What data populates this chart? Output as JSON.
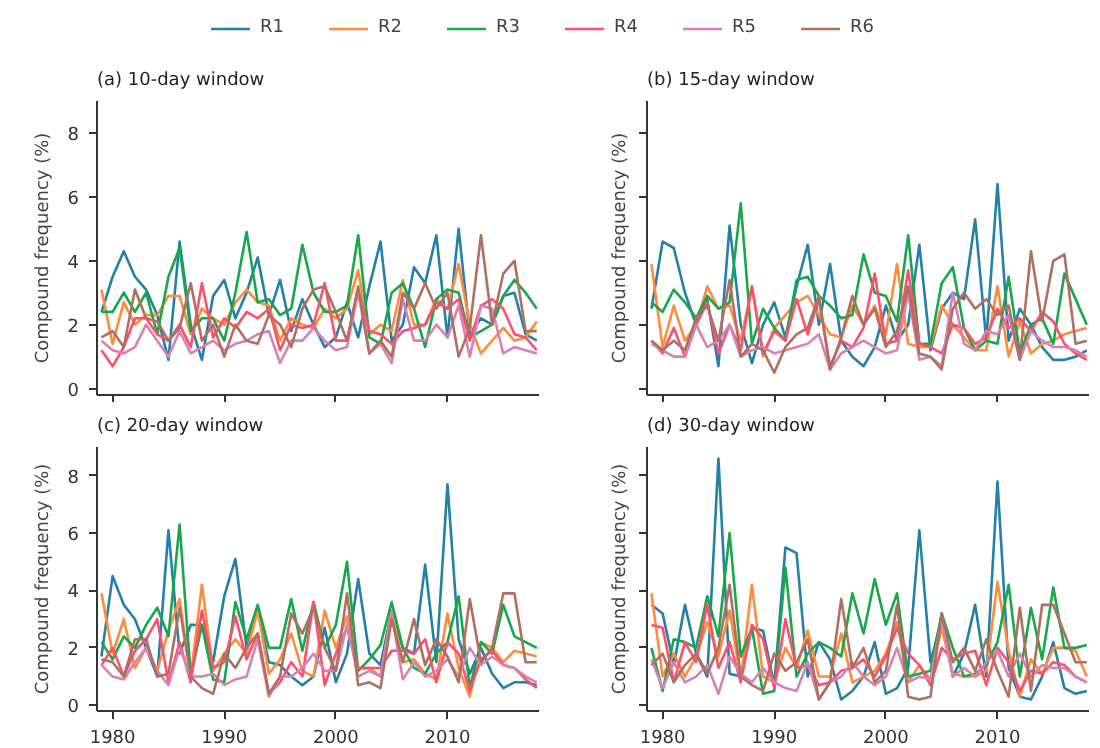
{
  "chart_data": [
    {
      "type": "line",
      "title": "(a) 10-day window",
      "ylabel": "Compound frequency (%)",
      "x": [
        1979,
        1980,
        1981,
        1982,
        1983,
        1984,
        1985,
        1986,
        1987,
        1988,
        1989,
        1990,
        1991,
        1992,
        1993,
        1994,
        1995,
        1996,
        1997,
        1998,
        1999,
        2000,
        2001,
        2002,
        2003,
        2004,
        2005,
        2006,
        2007,
        2008,
        2009,
        2010,
        2011,
        2012,
        2013,
        2014,
        2015,
        2016,
        2017,
        2018
      ],
      "xlim": [
        1978.6,
        2018.2
      ],
      "ylim": [
        -0.2,
        9
      ],
      "xticks": [
        1980,
        1990,
        2000,
        2010
      ],
      "yticks": [
        0,
        2,
        4,
        6,
        8
      ],
      "tick_labels": "y",
      "grid": false,
      "legend": "top",
      "series": [
        {
          "name": "R1",
          "color": "#2580a8",
          "values": [
            2.4,
            3.5,
            4.3,
            3.5,
            3.1,
            2.3,
            0.9,
            4.6,
            2.0,
            0.9,
            2.9,
            3.4,
            2.2,
            3.0,
            4.1,
            2.3,
            3.4,
            1.8,
            2.8,
            2.0,
            1.3,
            1.6,
            2.7,
            1.6,
            3.2,
            4.6,
            1.5,
            2.0,
            3.8,
            3.3,
            4.8,
            1.6,
            5.0,
            1.7,
            2.2,
            2.0,
            2.9,
            3.0,
            1.7,
            1.5
          ]
        },
        {
          "name": "R2",
          "color": "#ff8c3c",
          "values": [
            3.1,
            1.4,
            2.7,
            2.0,
            2.3,
            2.3,
            2.9,
            2.9,
            1.7,
            2.5,
            2.2,
            2.0,
            2.7,
            3.1,
            2.7,
            2.6,
            1.5,
            2.2,
            2.0,
            1.9,
            2.5,
            2.2,
            2.5,
            3.7,
            1.7,
            2.0,
            1.8,
            3.4,
            2.0,
            2.0,
            2.8,
            2.5,
            3.9,
            2.0,
            1.1,
            1.5,
            1.9,
            1.5,
            1.6,
            2.1
          ]
        },
        {
          "name": "R3",
          "color": "#1aa64a",
          "values": [
            2.4,
            2.4,
            3.0,
            2.4,
            3.0,
            1.7,
            3.5,
            4.4,
            1.8,
            2.2,
            2.2,
            1.5,
            3.0,
            4.9,
            2.7,
            2.8,
            2.3,
            2.5,
            4.5,
            3.0,
            2.4,
            2.4,
            2.6,
            4.8,
            1.6,
            1.4,
            3.0,
            3.3,
            2.5,
            1.3,
            2.8,
            3.1,
            3.0,
            1.6,
            1.8,
            2.0,
            2.9,
            3.4,
            3.0,
            2.5
          ]
        },
        {
          "name": "R4",
          "color": "#ff4f6e",
          "values": [
            1.2,
            0.7,
            1.3,
            2.2,
            2.2,
            1.7,
            1.5,
            2.0,
            1.3,
            3.3,
            1.6,
            2.2,
            1.9,
            2.4,
            2.2,
            2.5,
            1.2,
            2.0,
            1.9,
            2.0,
            3.3,
            1.5,
            1.5,
            3.1,
            1.8,
            1.7,
            1.4,
            1.8,
            1.9,
            2.0,
            2.7,
            2.5,
            2.8,
            1.5,
            2.6,
            2.8,
            2.5,
            1.7,
            1.6,
            1.2
          ]
        },
        {
          "name": "R5",
          "color": "#d882b4",
          "values": [
            1.5,
            1.2,
            1.1,
            1.3,
            2.0,
            1.5,
            1.0,
            1.8,
            1.1,
            1.3,
            1.5,
            1.2,
            1.4,
            1.5,
            1.7,
            1.8,
            0.8,
            1.5,
            1.5,
            1.9,
            1.5,
            1.2,
            1.3,
            3.0,
            1.1,
            1.4,
            0.8,
            2.8,
            1.5,
            1.5,
            2.0,
            1.6,
            2.6,
            1.0,
            2.6,
            2.5,
            1.1,
            1.3,
            1.2,
            1.1
          ]
        },
        {
          "name": "R6",
          "color": "#b0705f",
          "values": [
            1.6,
            1.8,
            1.3,
            3.1,
            2.2,
            2.1,
            1.5,
            1.9,
            3.3,
            1.5,
            2.0,
            1.0,
            2.0,
            1.5,
            1.4,
            2.3,
            2.0,
            1.3,
            2.5,
            3.1,
            3.2,
            2.4,
            1.5,
            3.2,
            1.1,
            1.5,
            1.0,
            3.0,
            2.5,
            3.3,
            2.5,
            3.0,
            1.0,
            1.9,
            4.8,
            2.0,
            3.6,
            4.0,
            1.8,
            1.8
          ]
        }
      ]
    },
    {
      "type": "line",
      "title": "(b) 15-day window",
      "ylabel": "Compound frequency (%)",
      "x": [
        1979,
        1980,
        1981,
        1982,
        1983,
        1984,
        1985,
        1986,
        1987,
        1988,
        1989,
        1990,
        1991,
        1992,
        1993,
        1994,
        1995,
        1996,
        1997,
        1998,
        1999,
        2000,
        2001,
        2002,
        2003,
        2004,
        2005,
        2006,
        2007,
        2008,
        2009,
        2010,
        2011,
        2012,
        2013,
        2014,
        2015,
        2016,
        2017,
        2018
      ],
      "xlim": [
        1978.6,
        2018.2
      ],
      "ylim": [
        -0.2,
        9
      ],
      "xticks": [
        1980,
        1990,
        2000,
        2010
      ],
      "yticks": [
        0,
        2,
        4,
        6,
        8
      ],
      "tick_labels": false,
      "grid": false,
      "series": [
        {
          "color": "#2580a8",
          "values": [
            2.5,
            4.6,
            4.4,
            3.0,
            2.0,
            2.8,
            0.7,
            5.1,
            2.0,
            0.8,
            2.0,
            2.7,
            1.6,
            3.2,
            4.5,
            2.0,
            3.9,
            1.5,
            1.0,
            0.7,
            1.3,
            2.6,
            1.5,
            2.0,
            4.5,
            1.2,
            2.5,
            3.0,
            2.8,
            5.3,
            1.5,
            6.4,
            1.5,
            2.5,
            2.0,
            1.3,
            0.9,
            0.9,
            1.0,
            1.2
          ]
        },
        {
          "color": "#ff8c3c",
          "values": [
            3.9,
            1.3,
            2.6,
            1.5,
            2.0,
            3.2,
            2.5,
            2.6,
            1.5,
            3.2,
            1.0,
            1.9,
            2.3,
            2.7,
            2.9,
            2.3,
            1.7,
            1.6,
            2.6,
            2.0,
            2.6,
            1.7,
            3.9,
            1.4,
            1.3,
            1.3,
            2.6,
            2.0,
            1.6,
            1.2,
            1.2,
            3.2,
            1.0,
            2.1,
            1.1,
            1.4,
            1.5,
            1.7,
            1.8,
            1.9
          ]
        },
        {
          "color": "#1aa64a",
          "values": [
            2.7,
            2.4,
            3.1,
            2.7,
            2.2,
            2.9,
            2.5,
            2.7,
            5.8,
            1.4,
            2.5,
            1.9,
            1.5,
            3.4,
            3.5,
            2.9,
            2.6,
            2.2,
            2.3,
            4.2,
            3.0,
            2.9,
            2.1,
            4.8,
            1.4,
            1.4,
            3.3,
            3.8,
            1.9,
            1.2,
            1.5,
            1.4,
            3.5,
            1.1,
            2.0,
            2.2,
            1.4,
            3.6,
            2.8,
            2.0
          ]
        },
        {
          "color": "#ff4f6e",
          "values": [
            1.5,
            1.1,
            1.9,
            1.0,
            2.0,
            2.7,
            1.1,
            2.0,
            1.2,
            3.2,
            1.1,
            1.8,
            1.5,
            2.8,
            1.7,
            2.8,
            0.7,
            1.5,
            1.3,
            1.9,
            3.6,
            1.4,
            1.5,
            3.7,
            1.4,
            1.3,
            1.1,
            2.0,
            1.9,
            1.4,
            1.6,
            2.5,
            1.9,
            2.2,
            1.8,
            2.4,
            2.1,
            1.4,
            1.1,
            0.9
          ]
        },
        {
          "color": "#d882b4",
          "values": [
            1.4,
            1.2,
            1.0,
            1.0,
            2.0,
            1.3,
            1.5,
            2.0,
            1.0,
            1.2,
            1.3,
            1.1,
            1.2,
            1.3,
            1.4,
            1.7,
            0.6,
            1.1,
            1.3,
            1.5,
            1.3,
            1.1,
            1.2,
            3.0,
            0.9,
            1.0,
            0.7,
            3.0,
            1.4,
            1.2,
            1.8,
            1.7,
            2.3,
            0.9,
            1.8,
            1.5,
            1.3,
            1.3,
            1.2,
            1.0
          ]
        },
        {
          "color": "#b0705f",
          "values": [
            1.5,
            1.2,
            1.5,
            1.2,
            2.2,
            2.6,
            1.5,
            3.4,
            1.0,
            1.4,
            1.2,
            0.5,
            1.3,
            1.7,
            1.9,
            2.9,
            0.6,
            1.6,
            2.9,
            2.0,
            2.5,
            1.3,
            1.8,
            3.2,
            1.1,
            1.0,
            0.6,
            2.5,
            3.0,
            2.5,
            2.8,
            2.3,
            2.6,
            0.9,
            4.3,
            2.1,
            4.0,
            4.2,
            1.4,
            1.5
          ]
        }
      ]
    },
    {
      "type": "line",
      "title": "(c) 20-day window",
      "ylabel": "Compound frequency (%)",
      "x": [
        1979,
        1980,
        1981,
        1982,
        1983,
        1984,
        1985,
        1986,
        1987,
        1988,
        1989,
        1990,
        1991,
        1992,
        1993,
        1994,
        1995,
        1996,
        1997,
        1998,
        1999,
        2000,
        2001,
        2002,
        2003,
        2004,
        2005,
        2006,
        2007,
        2008,
        2009,
        2010,
        2011,
        2012,
        2013,
        2014,
        2015,
        2016,
        2017,
        2018
      ],
      "xlim": [
        1978.6,
        2018.2
      ],
      "ylim": [
        -0.2,
        9
      ],
      "xticks": [
        1980,
        1990,
        2000,
        2010
      ],
      "yticks": [
        0,
        2,
        4,
        6,
        8
      ],
      "grid": false,
      "series": [
        {
          "color": "#2580a8",
          "values": [
            1.7,
            4.5,
            3.5,
            3.0,
            2.0,
            1.0,
            6.1,
            1.8,
            2.8,
            2.8,
            1.5,
            3.8,
            5.1,
            2.0,
            3.3,
            1.5,
            1.4,
            1.0,
            0.7,
            1.0,
            2.7,
            0.8,
            1.8,
            4.4,
            1.8,
            1.4,
            3.3,
            2.0,
            1.8,
            4.9,
            1.5,
            7.7,
            2.3,
            1.1,
            2.0,
            1.1,
            0.6,
            0.8,
            0.8,
            0.7
          ]
        },
        {
          "color": "#ff8c3c",
          "values": [
            3.9,
            1.8,
            3.0,
            1.3,
            2.0,
            1.2,
            2.6,
            3.7,
            1.0,
            4.2,
            1.2,
            1.8,
            2.3,
            1.8,
            3.3,
            1.1,
            1.6,
            2.5,
            1.2,
            1.0,
            3.3,
            2.0,
            3.1,
            1.3,
            1.3,
            1.0,
            3.3,
            1.5,
            1.6,
            1.1,
            0.9,
            3.2,
            1.3,
            0.3,
            2.2,
            2.0,
            1.5,
            1.9,
            1.8,
            1.7
          ]
        },
        {
          "color": "#1aa64a",
          "values": [
            2.2,
            1.6,
            2.4,
            2.0,
            2.8,
            3.4,
            2.4,
            6.3,
            1.0,
            2.8,
            0.9,
            0.8,
            3.6,
            2.3,
            3.5,
            2.0,
            2.0,
            3.7,
            1.9,
            3.6,
            2.0,
            2.8,
            5.0,
            1.2,
            1.6,
            2.1,
            3.6,
            2.0,
            1.3,
            1.1,
            1.8,
            2.2,
            3.8,
            0.6,
            2.2,
            1.8,
            3.5,
            2.4,
            2.2,
            2.0
          ]
        },
        {
          "color": "#ff4f6e",
          "values": [
            1.4,
            2.0,
            1.0,
            1.9,
            2.3,
            3.0,
            0.8,
            2.2,
            0.8,
            3.3,
            1.3,
            1.5,
            3.1,
            1.6,
            2.5,
            0.4,
            0.8,
            1.5,
            1.0,
            3.6,
            0.7,
            1.8,
            2.7,
            1.3,
            1.3,
            1.3,
            1.9,
            1.9,
            1.8,
            2.3,
            0.8,
            2.2,
            1.8,
            0.5,
            1.6,
            1.9,
            1.4,
            1.3,
            0.9,
            0.6
          ]
        },
        {
          "color": "#d882b4",
          "values": [
            1.4,
            1.0,
            0.9,
            1.5,
            2.0,
            1.2,
            0.7,
            2.0,
            1.0,
            1.0,
            1.1,
            0.7,
            0.9,
            1.0,
            2.3,
            0.3,
            1.0,
            1.0,
            1.3,
            1.8,
            1.2,
            1.2,
            2.8,
            1.0,
            1.2,
            1.0,
            3.2,
            0.9,
            1.5,
            1.0,
            1.2,
            1.6,
            1.0,
            2.0,
            1.4,
            1.7,
            1.4,
            1.3,
            1.0,
            0.8
          ]
        },
        {
          "color": "#b0705f",
          "values": [
            1.6,
            1.5,
            1.0,
            2.3,
            2.3,
            1.0,
            1.1,
            3.4,
            1.0,
            0.6,
            0.4,
            1.8,
            1.3,
            2.0,
            2.5,
            0.4,
            1.0,
            3.2,
            2.5,
            3.4,
            2.0,
            1.2,
            3.9,
            0.7,
            0.8,
            0.6,
            3.0,
            1.5,
            3.0,
            1.4,
            2.3,
            1.7,
            0.8,
            3.7,
            1.5,
            2.0,
            3.9,
            3.9,
            1.5,
            1.5
          ]
        }
      ]
    },
    {
      "type": "line",
      "title": "(d) 30-day window",
      "ylabel": "Compound frequency (%)",
      "x": [
        1979,
        1980,
        1981,
        1982,
        1983,
        1984,
        1985,
        1986,
        1987,
        1988,
        1989,
        1990,
        1991,
        1992,
        1993,
        1994,
        1995,
        1996,
        1997,
        1998,
        1999,
        2000,
        2001,
        2002,
        2003,
        2004,
        2005,
        2006,
        2007,
        2008,
        2009,
        2010,
        2011,
        2012,
        2013,
        2014,
        2015,
        2016,
        2017,
        2018
      ],
      "xlim": [
        1978.6,
        2018.2
      ],
      "ylim": [
        -0.2,
        9
      ],
      "xticks": [
        1980,
        1990,
        2000,
        2010
      ],
      "yticks": [
        0,
        2,
        4,
        6,
        8
      ],
      "tick_labels": "x",
      "grid": false,
      "series": [
        {
          "color": "#2580a8",
          "values": [
            3.5,
            3.2,
            1.4,
            3.5,
            1.8,
            1.0,
            8.6,
            1.1,
            1.0,
            2.7,
            2.6,
            0.7,
            5.5,
            5.3,
            1.0,
            2.2,
            1.6,
            0.2,
            0.5,
            1.0,
            2.2,
            0.4,
            0.6,
            1.3,
            6.1,
            1.5,
            3.0,
            1.0,
            1.8,
            3.5,
            1.0,
            7.8,
            1.3,
            0.3,
            0.2,
            1.0,
            2.2,
            0.6,
            0.4,
            0.5
          ]
        },
        {
          "color": "#ff8c3c",
          "values": [
            3.9,
            1.0,
            1.8,
            1.0,
            1.7,
            2.9,
            1.7,
            3.3,
            0.9,
            4.2,
            1.0,
            0.8,
            2.0,
            1.3,
            2.6,
            1.0,
            1.0,
            2.5,
            0.8,
            1.0,
            1.2,
            1.8,
            2.9,
            0.8,
            1.4,
            0.9,
            2.7,
            1.1,
            1.0,
            1.0,
            1.2,
            4.3,
            1.9,
            0.3,
            1.6,
            1.1,
            2.0,
            2.0,
            1.9,
            1.0
          ]
        },
        {
          "color": "#1aa64a",
          "values": [
            2.0,
            0.5,
            2.3,
            2.2,
            2.0,
            3.8,
            2.4,
            6.0,
            1.7,
            2.7,
            0.4,
            0.5,
            4.8,
            1.0,
            1.8,
            2.2,
            2.0,
            1.7,
            3.9,
            2.5,
            4.4,
            2.8,
            3.9,
            1.0,
            1.1,
            1.2,
            3.2,
            2.0,
            1.0,
            1.1,
            1.4,
            2.2,
            4.2,
            1.0,
            3.4,
            1.6,
            4.1,
            2.0,
            2.0,
            2.1
          ]
        },
        {
          "color": "#ff4f6e",
          "values": [
            2.8,
            2.7,
            0.8,
            2.2,
            1.5,
            3.5,
            1.3,
            2.2,
            0.8,
            2.8,
            2.3,
            0.6,
            3.0,
            1.3,
            1.4,
            0.7,
            0.8,
            1.2,
            1.3,
            1.6,
            1.0,
            1.7,
            2.7,
            1.8,
            1.4,
            0.7,
            2.0,
            1.6,
            1.8,
            1.9,
            0.7,
            2.0,
            1.5,
            0.5,
            1.2,
            1.1,
            1.5,
            1.4,
            1.0,
            0.8
          ]
        },
        {
          "color": "#d882b4",
          "values": [
            1.6,
            0.6,
            1.5,
            0.8,
            1.0,
            1.4,
            0.4,
            1.7,
            1.1,
            0.8,
            1.3,
            0.8,
            0.6,
            0.5,
            1.5,
            0.2,
            0.8,
            1.0,
            1.5,
            1.0,
            0.7,
            1.0,
            2.0,
            0.8,
            1.0,
            0.9,
            3.0,
            1.0,
            1.3,
            1.0,
            1.5,
            1.9,
            1.0,
            1.8,
            1.0,
            1.4,
            1.3,
            1.3,
            1.0,
            0.8
          ]
        },
        {
          "color": "#b0705f",
          "values": [
            1.4,
            1.8,
            0.8,
            1.4,
            1.8,
            1.1,
            2.0,
            4.2,
            1.0,
            0.7,
            0.5,
            1.8,
            1.2,
            1.5,
            2.3,
            0.2,
            0.8,
            3.7,
            1.3,
            2.0,
            0.8,
            1.2,
            3.5,
            0.3,
            0.2,
            0.3,
            3.2,
            1.5,
            2.0,
            1.2,
            2.3,
            1.2,
            0.3,
            3.4,
            0.5,
            3.5,
            3.5,
            2.5,
            1.5,
            1.5
          ]
        }
      ]
    }
  ]
}
